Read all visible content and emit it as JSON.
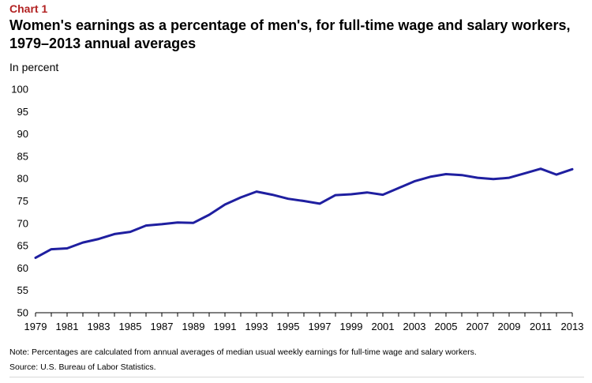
{
  "header": {
    "chart_label": "Chart 1",
    "title": "Women's earnings as a percentage of men's, for full-time wage and salary workers, 1979–2013 annual averages",
    "unit_label": "In percent"
  },
  "footer": {
    "note": "Note: Percentages are calculated from annual averages of median usual weekly earnings for full-time wage and salary workers.",
    "source": "Source: U.S. Bureau of Labor Statistics."
  },
  "colors": {
    "label": "#b22222",
    "series_line": "#1f1fa0",
    "axis": "#000000"
  },
  "chart_data": {
    "type": "line",
    "title": "Women's earnings as a percentage of men's, for full-time wage and salary workers, 1979–2013 annual averages",
    "xlabel": "",
    "ylabel": "In percent",
    "xlim": [
      1979,
      2013
    ],
    "ylim": [
      50,
      100
    ],
    "yticks": [
      50,
      55,
      60,
      65,
      70,
      75,
      80,
      85,
      90,
      95,
      100
    ],
    "xtick_labels": [
      "1979",
      "1981",
      "1983",
      "1985",
      "1987",
      "1989",
      "1991",
      "1993",
      "1995",
      "1997",
      "1999",
      "2001",
      "2003",
      "2005",
      "2007",
      "2009",
      "2011",
      "2013"
    ],
    "grid": false,
    "legend": "none",
    "series": [
      {
        "name": "Women's earnings as a percentage of men's",
        "x": [
          1979,
          1980,
          1981,
          1982,
          1983,
          1984,
          1985,
          1986,
          1987,
          1988,
          1989,
          1990,
          1991,
          1992,
          1993,
          1994,
          1995,
          1996,
          1997,
          1998,
          1999,
          2000,
          2001,
          2002,
          2003,
          2004,
          2005,
          2006,
          2007,
          2008,
          2009,
          2010,
          2011,
          2012,
          2013
        ],
        "values": [
          62.3,
          64.2,
          64.4,
          65.7,
          66.5,
          67.6,
          68.1,
          69.5,
          69.8,
          70.2,
          70.1,
          71.9,
          74.2,
          75.8,
          77.1,
          76.4,
          75.5,
          75.0,
          74.4,
          76.3,
          76.5,
          76.9,
          76.4,
          77.9,
          79.4,
          80.4,
          81.0,
          80.8,
          80.2,
          79.9,
          80.2,
          81.2,
          82.2,
          80.9,
          82.1
        ]
      }
    ]
  }
}
